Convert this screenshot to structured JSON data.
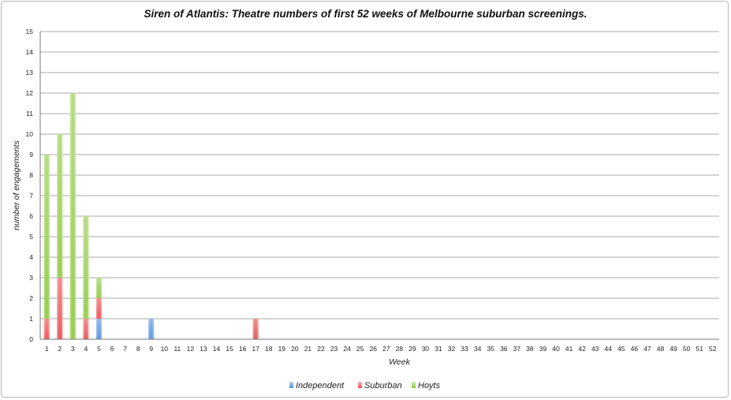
{
  "chart_data": {
    "type": "bar",
    "stacked": true,
    "title": "Siren of Atlantis: Theatre numbers of first 52 weeks of Melbourne suburban screenings.",
    "xlabel": "Week",
    "ylabel": "number of engagements",
    "ylim": [
      0,
      15
    ],
    "yticks": [
      "0",
      "1",
      "2",
      "3",
      "4",
      "5",
      "6",
      "7",
      "8",
      "9",
      "10",
      "11",
      "12",
      "13",
      "14",
      "15"
    ],
    "categories": [
      "1",
      "2",
      "3",
      "4",
      "5",
      "6",
      "7",
      "8",
      "9",
      "10",
      "11",
      "12",
      "13",
      "14",
      "15",
      "16",
      "17",
      "18",
      "19",
      "20",
      "21",
      "22",
      "23",
      "24",
      "25",
      "26",
      "27",
      "28",
      "29",
      "30",
      "31",
      "32",
      "33",
      "34",
      "35",
      "36",
      "37",
      "38",
      "39",
      "40",
      "41",
      "42",
      "43",
      "44",
      "45",
      "46",
      "47",
      "48",
      "49",
      "50",
      "51",
      "52"
    ],
    "series": [
      {
        "name": "Independent",
        "color": "#4f8fdc",
        "values": [
          0,
          0,
          0,
          0,
          1,
          0,
          0,
          0,
          1,
          0,
          0,
          0,
          0,
          0,
          0,
          0,
          0,
          0,
          0,
          0,
          0,
          0,
          0,
          0,
          0,
          0,
          0,
          0,
          0,
          0,
          0,
          0,
          0,
          0,
          0,
          0,
          0,
          0,
          0,
          0,
          0,
          0,
          0,
          0,
          0,
          0,
          0,
          0,
          0,
          0,
          0,
          0
        ]
      },
      {
        "name": "Suburban",
        "color": "#e84a4a",
        "values": [
          1,
          3,
          0,
          1,
          1,
          0,
          0,
          0,
          0,
          0,
          0,
          0,
          0,
          0,
          0,
          0,
          1,
          0,
          0,
          0,
          0,
          0,
          0,
          0,
          0,
          0,
          0,
          0,
          0,
          0,
          0,
          0,
          0,
          0,
          0,
          0,
          0,
          0,
          0,
          0,
          0,
          0,
          0,
          0,
          0,
          0,
          0,
          0,
          0,
          0,
          0,
          0
        ]
      },
      {
        "name": "Hoyts",
        "color": "#8cc83c",
        "values": [
          8,
          7,
          12,
          5,
          1,
          0,
          0,
          0,
          0,
          0,
          0,
          0,
          0,
          0,
          0,
          0,
          0,
          0,
          0,
          0,
          0,
          0,
          0,
          0,
          0,
          0,
          0,
          0,
          0,
          0,
          0,
          0,
          0,
          0,
          0,
          0,
          0,
          0,
          0,
          0,
          0,
          0,
          0,
          0,
          0,
          0,
          0,
          0,
          0,
          0,
          0,
          0
        ]
      }
    ],
    "grid": true,
    "legend_position": "bottom"
  }
}
